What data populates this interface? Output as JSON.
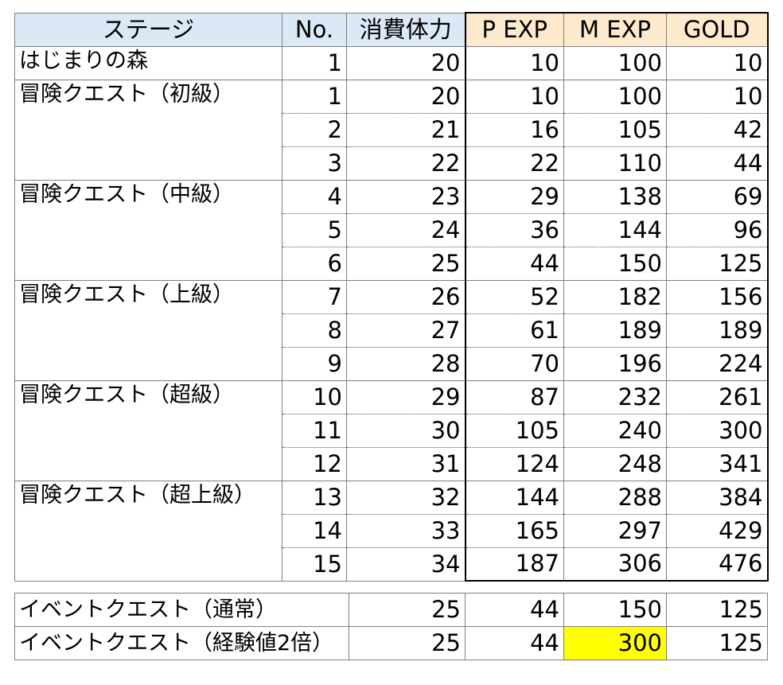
{
  "headers": {
    "stage": "ステージ",
    "no": "No.",
    "stamina": "消費体力",
    "p_exp": "P EXP",
    "m_exp": "M EXP",
    "gold": "GOLD"
  },
  "colors": {
    "header_bg": "#dbe8f6",
    "reward_header_bg": "#fdeacd",
    "highlight": "#ffff00"
  },
  "stages": [
    {
      "name": "はじまりの森",
      "rows": [
        {
          "no": "1",
          "stamina": "20",
          "p_exp": "10",
          "m_exp": "100",
          "gold": "10"
        }
      ]
    },
    {
      "name": "冒険クエスト（初級）",
      "rows": [
        {
          "no": "1",
          "stamina": "20",
          "p_exp": "10",
          "m_exp": "100",
          "gold": "10"
        },
        {
          "no": "2",
          "stamina": "21",
          "p_exp": "16",
          "m_exp": "105",
          "gold": "42"
        },
        {
          "no": "3",
          "stamina": "22",
          "p_exp": "22",
          "m_exp": "110",
          "gold": "44"
        }
      ]
    },
    {
      "name": "冒険クエスト（中級）",
      "rows": [
        {
          "no": "4",
          "stamina": "23",
          "p_exp": "29",
          "m_exp": "138",
          "gold": "69"
        },
        {
          "no": "5",
          "stamina": "24",
          "p_exp": "36",
          "m_exp": "144",
          "gold": "96"
        },
        {
          "no": "6",
          "stamina": "25",
          "p_exp": "44",
          "m_exp": "150",
          "gold": "125"
        }
      ]
    },
    {
      "name": "冒険クエスト（上級）",
      "rows": [
        {
          "no": "7",
          "stamina": "26",
          "p_exp": "52",
          "m_exp": "182",
          "gold": "156"
        },
        {
          "no": "8",
          "stamina": "27",
          "p_exp": "61",
          "m_exp": "189",
          "gold": "189"
        },
        {
          "no": "9",
          "stamina": "28",
          "p_exp": "70",
          "m_exp": "196",
          "gold": "224"
        }
      ]
    },
    {
      "name": "冒険クエスト（超級）",
      "rows": [
        {
          "no": "10",
          "stamina": "29",
          "p_exp": "87",
          "m_exp": "232",
          "gold": "261"
        },
        {
          "no": "11",
          "stamina": "30",
          "p_exp": "105",
          "m_exp": "240",
          "gold": "300"
        },
        {
          "no": "12",
          "stamina": "31",
          "p_exp": "124",
          "m_exp": "248",
          "gold": "341"
        }
      ]
    },
    {
      "name": "冒険クエスト（超上級）",
      "rows": [
        {
          "no": "13",
          "stamina": "32",
          "p_exp": "144",
          "m_exp": "288",
          "gold": "384"
        },
        {
          "no": "14",
          "stamina": "33",
          "p_exp": "165",
          "m_exp": "297",
          "gold": "429"
        },
        {
          "no": "15",
          "stamina": "34",
          "p_exp": "187",
          "m_exp": "306",
          "gold": "476"
        }
      ]
    }
  ],
  "events": [
    {
      "name": "イベントクエスト（通常）",
      "stamina": "25",
      "p_exp": "44",
      "m_exp": "150",
      "gold": "125",
      "highlight_m_exp": false
    },
    {
      "name": "イベントクエスト（経験値2倍）",
      "stamina": "25",
      "p_exp": "44",
      "m_exp": "300",
      "gold": "125",
      "highlight_m_exp": true
    }
  ]
}
